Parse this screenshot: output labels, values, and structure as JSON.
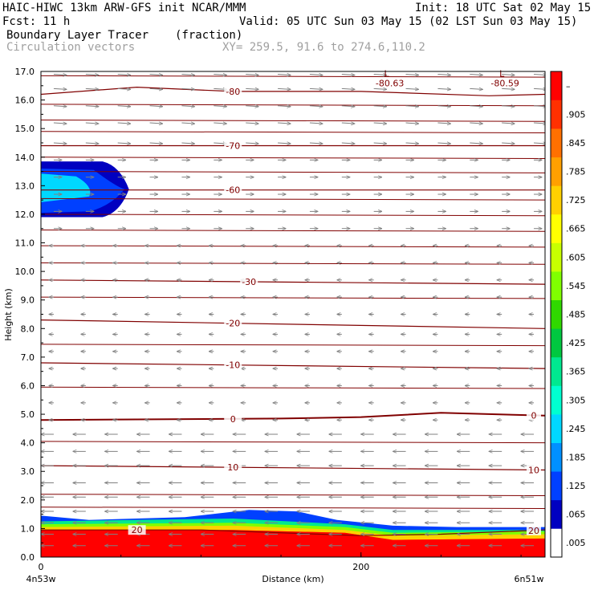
{
  "header": {
    "title_left": "HAIC-HIWC 13km ARW-GFS init   NCAR/MMM",
    "init": "Init: 18 UTC Sat 02 May 15",
    "fcst": "Fcst:   11 h",
    "valid": "Valid: 05 UTC Sun 03 May 15 (02 LST Sun 03 May 15)",
    "field": "Boundary Layer Tracer",
    "field_units": "(fraction)",
    "overlay": "Circulation vectors",
    "xy": "XY= 259.5, 91.6 to 274.6,110.2"
  },
  "chart_data": {
    "type": "heatmap",
    "ylabel": "Height (km)",
    "xlabel": "Distance (km)",
    "ylim": [
      0,
      17
    ],
    "xlim": [
      0,
      315
    ],
    "y_ticks": [
      "0.0",
      "1.0",
      "2.0",
      "3.0",
      "4.0",
      "5.0",
      "6.0",
      "7.0",
      "8.0",
      "9.0",
      "10.0",
      "11.0",
      "12.0",
      "13.0",
      "14.0",
      "15.0",
      "16.0",
      "17.0"
    ],
    "x_ticks": [
      {
        "value": 0,
        "label": "0"
      },
      {
        "value": 200,
        "label": "200"
      }
    ],
    "x_end_labels": {
      "left": "4n53w",
      "right": "6n51w"
    },
    "colorbar": {
      "labels": [
        ".005",
        ".065",
        ".125",
        ".185",
        ".245",
        ".305",
        ".365",
        ".425",
        ".485",
        ".545",
        ".605",
        ".665",
        ".725",
        ".785",
        ".845",
        ".905",
        "–"
      ],
      "colors": [
        "#ffffff",
        "#0000c0",
        "#0040ff",
        "#0090ff",
        "#00d8ff",
        "#00ffd0",
        "#00e890",
        "#00c840",
        "#30d800",
        "#80ff00",
        "#c8ff00",
        "#ffff00",
        "#ffd000",
        "#ffa000",
        "#ff7000",
        "#ff3000",
        "#ff0000"
      ]
    },
    "temperature_contours": [
      {
        "level": -80,
        "label": "-80",
        "label_x": 120,
        "heights_km": [
          [
            0,
            16.2
          ],
          [
            60,
            16.45
          ],
          [
            120,
            16.3
          ],
          [
            200,
            16.3
          ],
          [
            280,
            16.15
          ],
          [
            315,
            16.2
          ]
        ]
      },
      {
        "level": -70,
        "label": "-70",
        "label_x": 120,
        "heights_km": [
          [
            0,
            14.4
          ],
          [
            315,
            14.4
          ]
        ]
      },
      {
        "level": -60,
        "label": "-60",
        "label_x": 120,
        "heights_km": [
          [
            0,
            12.85
          ],
          [
            315,
            12.85
          ]
        ]
      },
      {
        "level": -30,
        "label": "-30",
        "label_x": 130,
        "heights_km": [
          [
            0,
            9.7
          ],
          [
            315,
            9.55
          ]
        ]
      },
      {
        "level": -20,
        "label": "-20",
        "label_x": 120,
        "heights_km": [
          [
            0,
            8.3
          ],
          [
            315,
            8.0
          ]
        ]
      },
      {
        "level": -10,
        "label": "-10",
        "label_x": 120,
        "heights_km": [
          [
            0,
            6.8
          ],
          [
            315,
            6.6
          ]
        ]
      },
      {
        "level": 0,
        "label": "0",
        "label_x": 120,
        "heights_km": [
          [
            0,
            4.8
          ],
          [
            150,
            4.85
          ],
          [
            200,
            4.9
          ],
          [
            250,
            5.05
          ],
          [
            315,
            4.95
          ]
        ]
      },
      {
        "level": 10,
        "label": "10",
        "label_x": 120,
        "heights_km": [
          [
            0,
            3.2
          ],
          [
            315,
            3.05
          ]
        ]
      },
      {
        "level": 20,
        "label": "20",
        "label_x": 60,
        "heights_km": [
          [
            0,
            0.95
          ],
          [
            100,
            0.95
          ],
          [
            200,
            0.75
          ],
          [
            250,
            0.8
          ],
          [
            315,
            0.95
          ]
        ]
      }
    ],
    "extra_isotherms_km": [
      16.85,
      15.85,
      15.3,
      14.9,
      14.0,
      13.5,
      12.55,
      12.0,
      11.45,
      10.9,
      10.3,
      9.1,
      7.45,
      5.95,
      4.05,
      2.2,
      1.75
    ],
    "lows": [
      {
        "x": 218,
        "label": "-80.63"
      },
      {
        "x": 290,
        "label": "-80.59"
      }
    ],
    "tracer_plume": {
      "top_height_km": [
        [
          0,
          1.45
        ],
        [
          30,
          1.3
        ],
        [
          90,
          1.4
        ],
        [
          130,
          1.65
        ],
        [
          160,
          1.6
        ],
        [
          185,
          1.3
        ],
        [
          220,
          1.1
        ],
        [
          260,
          1.05
        ],
        [
          315,
          1.05
        ]
      ],
      "layers": [
        {
          "fraction": 0.905,
          "top_height_km": [
            [
              0,
              0.95
            ],
            [
              120,
              0.95
            ],
            [
              190,
              0.85
            ],
            [
              220,
              0.6
            ],
            [
              315,
              0.65
            ]
          ]
        },
        {
          "fraction": 0.725,
          "top_height_km": [
            [
              0,
              1.05
            ],
            [
              120,
              1.1
            ],
            [
              190,
              0.95
            ],
            [
              220,
              0.75
            ],
            [
              315,
              0.8
            ]
          ]
        },
        {
          "fraction": 0.545,
          "top_height_km": [
            [
              0,
              1.15
            ],
            [
              120,
              1.2
            ],
            [
              190,
              1.05
            ],
            [
              220,
              0.85
            ],
            [
              315,
              0.9
            ]
          ]
        },
        {
          "fraction": 0.365,
          "top_height_km": [
            [
              0,
              1.25
            ],
            [
              120,
              1.35
            ],
            [
              190,
              1.15
            ],
            [
              220,
              0.95
            ],
            [
              315,
              0.95
            ]
          ]
        }
      ]
    },
    "upper_tracer_patch": {
      "x_range_km": [
        0,
        55
      ],
      "height_range_km": [
        11.9,
        13.85
      ],
      "fraction_max": 0.365
    },
    "vectors": {
      "note": "Circulation vectors",
      "rows_km": [
        0.4,
        0.8,
        1.2,
        1.6,
        2.1,
        2.6,
        3.2,
        3.7,
        4.3,
        4.8,
        5.4,
        6.0,
        6.6,
        7.2,
        7.8,
        8.5,
        9.1,
        9.7,
        10.3,
        10.9,
        11.5,
        12.1,
        12.7,
        13.3,
        13.9,
        14.5,
        15.2,
        15.8,
        16.4,
        16.9
      ],
      "column_spacing_km": 20
    }
  }
}
